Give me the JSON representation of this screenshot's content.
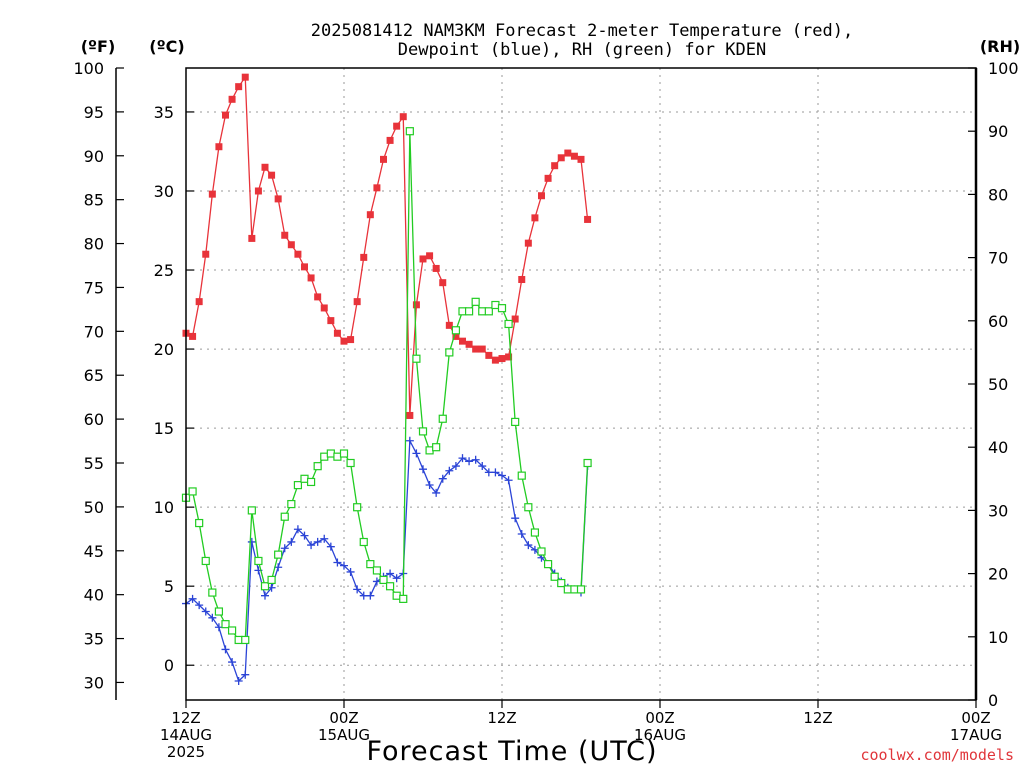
{
  "chart_data": {
    "type": "line",
    "title_line1": "2025081412 NAM3KM Forecast 2-meter Temperature (red),",
    "title_line2": "Dewpoint (blue), RH (green) for KDEN",
    "xlabel": "Forecast Time (UTC)",
    "credit": "coolwx.com/models",
    "units": {
      "f": "(ºF)",
      "c": "(ºC)",
      "rh": "(RH)"
    },
    "x_forecast_hours_range": [
      0,
      60
    ],
    "y_temp_f_range": [
      28,
      100
    ],
    "y_temp_c_range": [
      -2.2,
      37.78
    ],
    "y_rh_range": [
      0,
      100
    ],
    "fahrenheit_ticks": [
      30,
      35,
      40,
      45,
      50,
      55,
      60,
      65,
      70,
      75,
      80,
      85,
      90,
      95,
      100
    ],
    "celsius_ticks": [
      0,
      5,
      10,
      15,
      20,
      25,
      30,
      35
    ],
    "rh_ticks": [
      0,
      10,
      20,
      30,
      40,
      50,
      60,
      70,
      80,
      90,
      100
    ],
    "x_ticks": [
      {
        "hour": 0,
        "lines": [
          "12Z",
          "14AUG",
          "2025"
        ]
      },
      {
        "hour": 12,
        "lines": [
          "00Z",
          "15AUG"
        ]
      },
      {
        "hour": 24,
        "lines": [
          "12Z"
        ]
      },
      {
        "hour": 36,
        "lines": [
          "00Z",
          "16AUG"
        ]
      },
      {
        "hour": 48,
        "lines": [
          "12Z"
        ]
      },
      {
        "hour": 60,
        "lines": [
          "00Z",
          "17AUG"
        ]
      }
    ],
    "grid": true,
    "series": [
      {
        "name": "Temperature",
        "color": "#e8333a",
        "marker": "filled-square",
        "unit": "degC",
        "values": [
          [
            0,
            21.0
          ],
          [
            0.5,
            20.8
          ],
          [
            1,
            23.0
          ],
          [
            1.5,
            26.0
          ],
          [
            2,
            29.8
          ],
          [
            2.5,
            32.8
          ],
          [
            3,
            34.8
          ],
          [
            3.5,
            35.8
          ],
          [
            4,
            36.6
          ],
          [
            4.5,
            37.2
          ],
          [
            5,
            27.0
          ],
          [
            5.5,
            30.0
          ],
          [
            6,
            31.5
          ],
          [
            6.5,
            31.0
          ],
          [
            7,
            29.5
          ],
          [
            7.5,
            27.2
          ],
          [
            8,
            26.6
          ],
          [
            8.5,
            26.0
          ],
          [
            9,
            25.2
          ],
          [
            9.5,
            24.5
          ],
          [
            10,
            23.3
          ],
          [
            10.5,
            22.6
          ],
          [
            11,
            21.8
          ],
          [
            11.5,
            21.0
          ],
          [
            12,
            20.5
          ],
          [
            12.5,
            20.6
          ],
          [
            13,
            23.0
          ],
          [
            13.5,
            25.8
          ],
          [
            14,
            28.5
          ],
          [
            14.5,
            30.2
          ],
          [
            15,
            32.0
          ],
          [
            15.5,
            33.2
          ],
          [
            16,
            34.1
          ],
          [
            16.5,
            34.7
          ],
          [
            17,
            15.8
          ],
          [
            17.5,
            22.8
          ],
          [
            18,
            25.7
          ],
          [
            18.5,
            25.9
          ],
          [
            19,
            25.1
          ],
          [
            19.5,
            24.2
          ],
          [
            20,
            21.5
          ],
          [
            20.5,
            20.8
          ],
          [
            21,
            20.5
          ],
          [
            21.5,
            20.3
          ],
          [
            22,
            20.0
          ],
          [
            22.5,
            20.0
          ],
          [
            23,
            19.6
          ],
          [
            23.5,
            19.3
          ],
          [
            24,
            19.4
          ],
          [
            24.5,
            19.5
          ],
          [
            25,
            21.9
          ],
          [
            25.5,
            24.4
          ],
          [
            26,
            26.7
          ],
          [
            26.5,
            28.3
          ],
          [
            27,
            29.7
          ],
          [
            27.5,
            30.8
          ],
          [
            28,
            31.6
          ],
          [
            28.5,
            32.1
          ],
          [
            29,
            32.4
          ],
          [
            29.5,
            32.2
          ],
          [
            30,
            32.0
          ],
          [
            30.5,
            28.2
          ]
        ]
      },
      {
        "name": "Dewpoint",
        "color": "#2b44d6",
        "marker": "plus",
        "unit": "degC",
        "values": [
          [
            0,
            3.9
          ],
          [
            0.5,
            4.2
          ],
          [
            1,
            3.8
          ],
          [
            1.5,
            3.4
          ],
          [
            2,
            3.0
          ],
          [
            2.5,
            2.4
          ],
          [
            3,
            1.0
          ],
          [
            3.5,
            0.2
          ],
          [
            4,
            -1.0
          ],
          [
            4.5,
            -0.6
          ],
          [
            5,
            7.8
          ],
          [
            5.5,
            6.0
          ],
          [
            6,
            4.4
          ],
          [
            6.5,
            4.9
          ],
          [
            7,
            6.2
          ],
          [
            7.5,
            7.4
          ],
          [
            8,
            7.8
          ],
          [
            8.5,
            8.6
          ],
          [
            9,
            8.2
          ],
          [
            9.5,
            7.6
          ],
          [
            10,
            7.8
          ],
          [
            10.5,
            8.0
          ],
          [
            11,
            7.5
          ],
          [
            11.5,
            6.5
          ],
          [
            12,
            6.3
          ],
          [
            12.5,
            5.9
          ],
          [
            13,
            4.8
          ],
          [
            13.5,
            4.4
          ],
          [
            14,
            4.4
          ],
          [
            14.5,
            5.3
          ],
          [
            15,
            5.6
          ],
          [
            15.5,
            5.8
          ],
          [
            16,
            5.5
          ],
          [
            16.5,
            5.8
          ],
          [
            17,
            14.2
          ],
          [
            17.5,
            13.4
          ],
          [
            18,
            12.4
          ],
          [
            18.5,
            11.4
          ],
          [
            19,
            10.9
          ],
          [
            19.5,
            11.8
          ],
          [
            20,
            12.3
          ],
          [
            20.5,
            12.6
          ],
          [
            21,
            13.1
          ],
          [
            21.5,
            12.9
          ],
          [
            22,
            13.0
          ],
          [
            22.5,
            12.6
          ],
          [
            23,
            12.2
          ],
          [
            23.5,
            12.2
          ],
          [
            24,
            12.0
          ],
          [
            24.5,
            11.7
          ],
          [
            25,
            9.3
          ],
          [
            25.5,
            8.3
          ],
          [
            26,
            7.6
          ],
          [
            26.5,
            7.3
          ],
          [
            27,
            6.8
          ],
          [
            27.5,
            6.4
          ],
          [
            28,
            5.8
          ],
          [
            28.5,
            5.3
          ],
          [
            29,
            4.9
          ],
          [
            29.5,
            4.8
          ],
          [
            30,
            4.6
          ],
          [
            30.5,
            12.6
          ]
        ]
      },
      {
        "name": "RH",
        "color": "#22cc22",
        "marker": "open-square",
        "unit": "percent",
        "values": [
          [
            0,
            32
          ],
          [
            0.5,
            33
          ],
          [
            1,
            28
          ],
          [
            1.5,
            22
          ],
          [
            2,
            17
          ],
          [
            2.5,
            14
          ],
          [
            3,
            12
          ],
          [
            3.5,
            11
          ],
          [
            4,
            9.5
          ],
          [
            4.5,
            9.5
          ],
          [
            5,
            30
          ],
          [
            5.5,
            22
          ],
          [
            6,
            18
          ],
          [
            6.5,
            19
          ],
          [
            7,
            23
          ],
          [
            7.5,
            29
          ],
          [
            8,
            31
          ],
          [
            8.5,
            34
          ],
          [
            9,
            35
          ],
          [
            9.5,
            34.5
          ],
          [
            10,
            37
          ],
          [
            10.5,
            38.5
          ],
          [
            11,
            39
          ],
          [
            11.5,
            38.5
          ],
          [
            12,
            39
          ],
          [
            12.5,
            37.5
          ],
          [
            13,
            30.5
          ],
          [
            13.5,
            25
          ],
          [
            14,
            21.5
          ],
          [
            14.5,
            20.5
          ],
          [
            15,
            19
          ],
          [
            15.5,
            18
          ],
          [
            16,
            16.5
          ],
          [
            16.5,
            16
          ],
          [
            17,
            90
          ],
          [
            17.5,
            54
          ],
          [
            18,
            42.5
          ],
          [
            18.5,
            39.5
          ],
          [
            19,
            40
          ],
          [
            19.5,
            44.5
          ],
          [
            20,
            55
          ],
          [
            20.5,
            58.5
          ],
          [
            21,
            61.5
          ],
          [
            21.5,
            61.5
          ],
          [
            22,
            63
          ],
          [
            22.5,
            61.5
          ],
          [
            23,
            61.5
          ],
          [
            23.5,
            62.5
          ],
          [
            24,
            62
          ],
          [
            24.5,
            59.5
          ],
          [
            25,
            44
          ],
          [
            25.5,
            35.5
          ],
          [
            26,
            30.5
          ],
          [
            26.5,
            26.5
          ],
          [
            27,
            23.5
          ],
          [
            27.5,
            21.5
          ],
          [
            28,
            19.5
          ],
          [
            28.5,
            18.5
          ],
          [
            29,
            17.5
          ],
          [
            29.5,
            17.5
          ],
          [
            30,
            17.5
          ],
          [
            30.5,
            37.5
          ]
        ]
      }
    ]
  }
}
